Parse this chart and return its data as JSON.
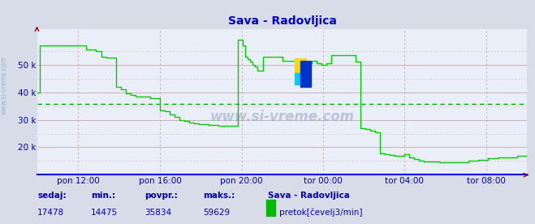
{
  "title": "Sava - Radovljica",
  "bg_color": "#d8dce8",
  "plot_bg_color": "#eaeef8",
  "grid_color_major": "#c8a8a8",
  "grid_color_minor": "#d8c0c0",
  "avg_line_color": "#00aa00",
  "avg_value": 35834,
  "line_color": "#00cc00",
  "line_width": 1.0,
  "ymin": 10000,
  "ymax": 63000,
  "yticks": [
    20000,
    30000,
    40000,
    50000
  ],
  "ytick_labels": [
    "20 k",
    "30 k",
    "40 k",
    "50 k"
  ],
  "title_color": "#0000cc",
  "axis_color": "#0000aa",
  "bottom_line_color": "#0000dd",
  "right_arrow_color": "#990000",
  "top_arrow_color": "#990000",
  "sedaj": 17478,
  "min_val": 14475,
  "povpr": 35834,
  "maks": 59629,
  "station": "Sava - Radovljica",
  "unit": "pretok[čevelj3/min]",
  "legend_color": "#00bb00",
  "watermark": "www.si-vreme.com",
  "side_label": "www.si-vreme.com",
  "xtick_labels": [
    "pon 12:00",
    "pon 16:00",
    "pon 20:00",
    "tor 00:00",
    "tor 04:00",
    "tor 08:00"
  ],
  "xtick_positions": [
    0.083,
    0.25,
    0.417,
    0.583,
    0.75,
    0.917
  ],
  "data_x": [
    0.0,
    0.005,
    0.01,
    0.02,
    0.03,
    0.04,
    0.05,
    0.06,
    0.07,
    0.08,
    0.09,
    0.1,
    0.11,
    0.12,
    0.13,
    0.14,
    0.15,
    0.16,
    0.17,
    0.18,
    0.19,
    0.2,
    0.21,
    0.22,
    0.23,
    0.24,
    0.25,
    0.26,
    0.27,
    0.28,
    0.29,
    0.3,
    0.31,
    0.32,
    0.33,
    0.34,
    0.35,
    0.36,
    0.37,
    0.38,
    0.39,
    0.4,
    0.41,
    0.415,
    0.42,
    0.425,
    0.43,
    0.435,
    0.44,
    0.445,
    0.45,
    0.46,
    0.47,
    0.48,
    0.49,
    0.5,
    0.51,
    0.52,
    0.53,
    0.54,
    0.55,
    0.56,
    0.57,
    0.58,
    0.59,
    0.6,
    0.61,
    0.62,
    0.63,
    0.64,
    0.65,
    0.66,
    0.67,
    0.68,
    0.69,
    0.7,
    0.71,
    0.72,
    0.73,
    0.74,
    0.75,
    0.76,
    0.77,
    0.78,
    0.79,
    0.8,
    0.82,
    0.84,
    0.86,
    0.88,
    0.9,
    0.92,
    0.94,
    0.96,
    0.98,
    1.0
  ],
  "data_y": [
    40000,
    57000,
    57200,
    57200,
    57200,
    57200,
    57200,
    57200,
    57200,
    57200,
    57200,
    55500,
    55500,
    55000,
    53000,
    52500,
    52500,
    42000,
    41000,
    39500,
    39000,
    38500,
    38500,
    38500,
    38000,
    38000,
    33500,
    33000,
    32000,
    31000,
    30000,
    29500,
    29000,
    28800,
    28500,
    28300,
    28100,
    28000,
    27900,
    27900,
    27900,
    27900,
    59000,
    59200,
    57000,
    53000,
    52000,
    51000,
    50000,
    49500,
    48000,
    53000,
    53000,
    53000,
    53000,
    51500,
    51500,
    51500,
    51000,
    50500,
    50500,
    51500,
    50500,
    50000,
    50500,
    53500,
    53500,
    53500,
    53500,
    53500,
    51000,
    27000,
    26500,
    26000,
    25500,
    17800,
    17500,
    17200,
    17000,
    16800,
    17500,
    16200,
    15800,
    15200,
    14800,
    14700,
    14600,
    14600,
    14500,
    15000,
    15500,
    16000,
    16200,
    16400,
    17000,
    17500
  ]
}
